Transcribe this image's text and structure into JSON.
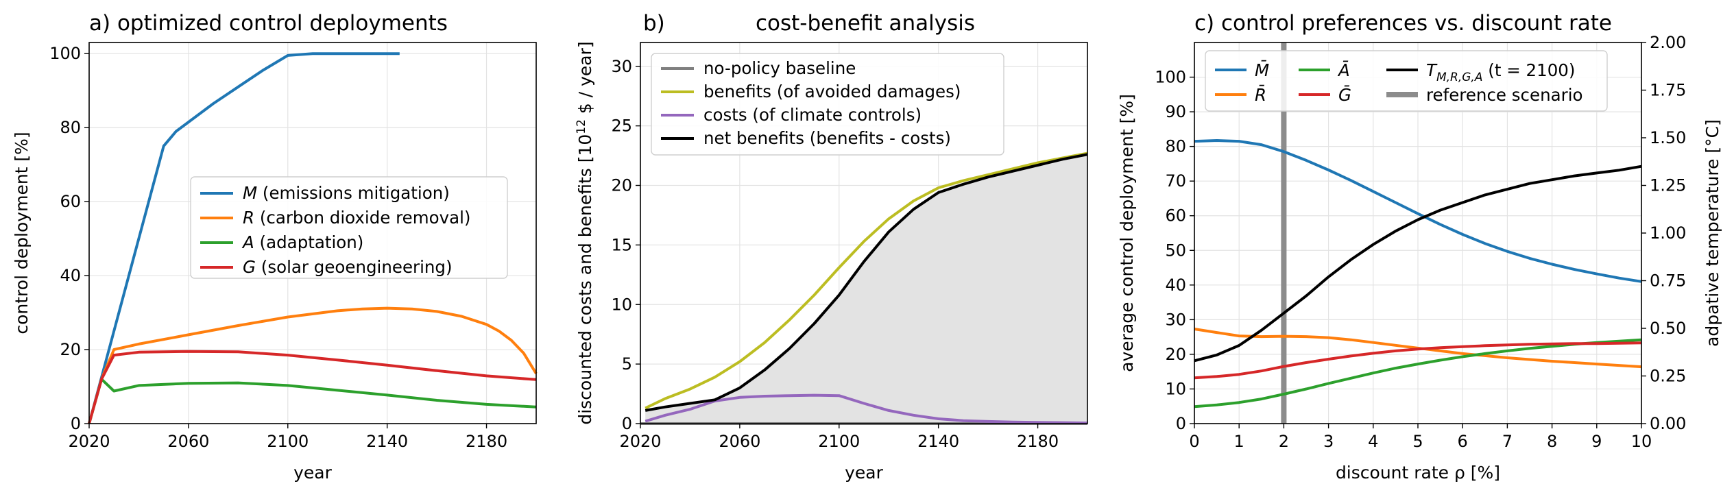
{
  "chart_data": [
    {
      "type": "line",
      "title": "a)   optimized control deployments",
      "xlabel": "year",
      "ylabel": "control deployment [%]",
      "xlim": [
        2020,
        2200
      ],
      "ylim": [
        0,
        103
      ],
      "xticks": [
        2020,
        2060,
        2100,
        2140,
        2180
      ],
      "yticks": [
        0,
        20,
        40,
        60,
        80,
        100
      ],
      "grid": true,
      "legend_position": "center-right",
      "series": [
        {
          "name": "M (emissions mitigation)",
          "italic": "M",
          "rest": " (emissions mitigation)",
          "color": "#1f77b4",
          "x": [
            2020,
            2030,
            2040,
            2050,
            2055,
            2060,
            2070,
            2080,
            2090,
            2100,
            2110,
            2120,
            2130,
            2140,
            2145
          ],
          "y": [
            0,
            25,
            50,
            75,
            79,
            81.5,
            86.5,
            91,
            95.5,
            99.5,
            100,
            100,
            100,
            100,
            100
          ]
        },
        {
          "name": "R (carbon dioxide removal)",
          "italic": "R",
          "rest": " (carbon dioxide removal)",
          "color": "#ff7f0e",
          "x": [
            2020,
            2025,
            2030,
            2040,
            2060,
            2080,
            2100,
            2120,
            2130,
            2140,
            2150,
            2160,
            2170,
            2180,
            2185,
            2190,
            2195,
            2200
          ],
          "y": [
            0,
            12,
            20,
            21.5,
            24,
            26.5,
            28.8,
            30.5,
            31,
            31.2,
            31,
            30.3,
            29,
            26.8,
            25,
            22.5,
            19,
            13.5
          ]
        },
        {
          "name": "A (adaptation)",
          "italic": "A",
          "rest": " (adaptation)",
          "color": "#2ca02c",
          "x": [
            2020,
            2025,
            2030,
            2040,
            2060,
            2080,
            2100,
            2120,
            2140,
            2160,
            2180,
            2200
          ],
          "y": [
            0,
            12,
            8.8,
            10.3,
            10.9,
            11,
            10.3,
            9,
            7.7,
            6.3,
            5.2,
            4.5
          ]
        },
        {
          "name": "G (solar geoengineering)",
          "italic": "G",
          "rest": " (solar geoengineering)",
          "color": "#d62728",
          "x": [
            2020,
            2025,
            2030,
            2040,
            2060,
            2080,
            2100,
            2120,
            2140,
            2160,
            2180,
            2200
          ],
          "y": [
            0,
            12,
            18.5,
            19.3,
            19.5,
            19.4,
            18.5,
            17.2,
            15.8,
            14.3,
            12.9,
            11.9
          ]
        }
      ]
    },
    {
      "type": "line",
      "title_prefix": "b)",
      "title": "cost-benefit analysis",
      "xlabel": "year",
      "ylabel": "discounted costs and benefits [10",
      "ylabel_sup": "12",
      "ylabel_suffix": " $ / year]",
      "xlim": [
        2020,
        2200
      ],
      "ylim": [
        0,
        32
      ],
      "xticks": [
        2020,
        2060,
        2100,
        2140,
        2180
      ],
      "yticks": [
        0,
        5,
        10,
        15,
        20,
        25,
        30
      ],
      "grid": true,
      "legend_position": "top-left",
      "fill_under": "net benefits (benefits - costs)",
      "series": [
        {
          "name": "no-policy baseline",
          "color": "#7f7f7f",
          "x": [
            2020,
            2200
          ],
          "y": [
            0,
            0
          ]
        },
        {
          "name": "benefits (of avoided damages)",
          "color": "#bcbd22",
          "x": [
            2022,
            2030,
            2040,
            2050,
            2060,
            2070,
            2080,
            2090,
            2100,
            2110,
            2120,
            2130,
            2140,
            2150,
            2160,
            2170,
            2180,
            2190,
            2200
          ],
          "y": [
            1.3,
            2.1,
            2.9,
            3.9,
            5.2,
            6.8,
            8.7,
            10.8,
            13.1,
            15.3,
            17.2,
            18.7,
            19.8,
            20.4,
            20.9,
            21.4,
            21.9,
            22.3,
            22.7
          ]
        },
        {
          "name": "costs (of climate controls)",
          "color": "#9467bd",
          "x": [
            2022,
            2030,
            2040,
            2050,
            2060,
            2070,
            2080,
            2090,
            2100,
            2110,
            2120,
            2130,
            2140,
            2150,
            2160,
            2170,
            2180,
            2190,
            2200
          ],
          "y": [
            0.2,
            0.7,
            1.2,
            1.9,
            2.2,
            2.3,
            2.35,
            2.38,
            2.35,
            1.7,
            1.1,
            0.7,
            0.4,
            0.25,
            0.18,
            0.13,
            0.1,
            0.08,
            0.05
          ]
        },
        {
          "name": "net benefits (benefits - costs)",
          "color": "#000000",
          "x": [
            2022,
            2030,
            2040,
            2050,
            2060,
            2070,
            2080,
            2090,
            2100,
            2110,
            2120,
            2130,
            2140,
            2150,
            2160,
            2170,
            2180,
            2190,
            2200
          ],
          "y": [
            1.1,
            1.4,
            1.7,
            2.0,
            3.0,
            4.5,
            6.3,
            8.4,
            10.8,
            13.6,
            16.1,
            18.0,
            19.4,
            20.1,
            20.7,
            21.2,
            21.7,
            22.2,
            22.6
          ]
        }
      ]
    },
    {
      "type": "line",
      "title": "c) control preferences vs. discount rate",
      "xlabel": "discount rate ρ [%]",
      "ylabel": "average control deployment [%]",
      "ylabel_right": "adpative temperature [°C]",
      "xlim": [
        0,
        10
      ],
      "ylim": [
        0,
        110
      ],
      "ylim_right": [
        0,
        2.0
      ],
      "xticks": [
        0,
        1,
        2,
        3,
        4,
        5,
        6,
        7,
        8,
        9,
        10
      ],
      "yticks": [
        0,
        10,
        20,
        30,
        40,
        50,
        60,
        70,
        80,
        90,
        100
      ],
      "yticks_right": [
        "0.00",
        "0.25",
        "0.50",
        "0.75",
        "1.00",
        "1.25",
        "1.50",
        "1.75",
        "2.00"
      ],
      "grid": true,
      "legend_position": "top",
      "reference_x": 2,
      "series": [
        {
          "name": "M̄",
          "color": "#1f77b4",
          "axis": "left",
          "x": [
            0,
            0.5,
            1,
            1.5,
            2,
            2.5,
            3,
            3.5,
            4,
            4.5,
            5,
            5.5,
            6,
            6.5,
            7,
            7.5,
            8,
            8.5,
            9,
            9.5,
            10
          ],
          "y": [
            81.5,
            81.7,
            81.5,
            80.5,
            78.5,
            76,
            73.2,
            70.2,
            67,
            63.8,
            60.6,
            57.5,
            54.6,
            52,
            49.7,
            47.7,
            46,
            44.5,
            43.2,
            42,
            41
          ]
        },
        {
          "name": "R̄",
          "color": "#ff7f0e",
          "axis": "left",
          "x": [
            0,
            0.5,
            1,
            1.5,
            2,
            2.5,
            3,
            3.5,
            4,
            4.5,
            5,
            5.5,
            6,
            6.5,
            7,
            7.5,
            8,
            8.5,
            9,
            9.5,
            10
          ],
          "y": [
            27.3,
            26.3,
            25.3,
            25.1,
            25.2,
            25.1,
            24.8,
            24.2,
            23.4,
            22.6,
            21.8,
            21,
            20.2,
            19.6,
            19,
            18.5,
            18,
            17.6,
            17.2,
            16.8,
            16.4
          ]
        },
        {
          "name": "Ā",
          "color": "#2ca02c",
          "axis": "left",
          "x": [
            0,
            0.5,
            1,
            1.5,
            2,
            2.5,
            3,
            3.5,
            4,
            4.5,
            5,
            5.5,
            6,
            6.5,
            7,
            7.5,
            8,
            8.5,
            9,
            9.5,
            10
          ],
          "y": [
            4.9,
            5.4,
            6.1,
            7.1,
            8.5,
            10,
            11.6,
            13.1,
            14.6,
            16,
            17.2,
            18.3,
            19.3,
            20.2,
            21,
            21.7,
            22.3,
            22.9,
            23.4,
            23.8,
            24.2
          ]
        },
        {
          "name": "Ḡ",
          "color": "#d62728",
          "axis": "left",
          "x": [
            0,
            0.5,
            1,
            1.5,
            2,
            2.5,
            3,
            3.5,
            4,
            4.5,
            5,
            5.5,
            6,
            6.5,
            7,
            7.5,
            8,
            8.5,
            9,
            9.5,
            10
          ],
          "y": [
            13.2,
            13.6,
            14.2,
            15.2,
            16.5,
            17.6,
            18.6,
            19.5,
            20.3,
            21,
            21.5,
            21.9,
            22.2,
            22.5,
            22.7,
            22.9,
            23,
            23.1,
            23.1,
            23.2,
            23.3
          ]
        },
        {
          "name": "T_{M,R,G,A}(t = 2100)",
          "color": "#000000",
          "axis": "right",
          "x": [
            0,
            0.5,
            1,
            1.5,
            2,
            2.5,
            3,
            3.5,
            4,
            4.5,
            5,
            5.5,
            6,
            6.5,
            7,
            7.5,
            8,
            8.5,
            9,
            9.5,
            10
          ],
          "y": [
            0.33,
            0.36,
            0.41,
            0.49,
            0.58,
            0.67,
            0.77,
            0.86,
            0.94,
            1.01,
            1.07,
            1.12,
            1.16,
            1.2,
            1.23,
            1.26,
            1.28,
            1.3,
            1.315,
            1.33,
            1.35
          ]
        }
      ],
      "legend_entries": [
        {
          "key": "M̄",
          "color": "#1f77b4",
          "col": 0,
          "row": 0
        },
        {
          "key": "R̄",
          "color": "#ff7f0e",
          "col": 0,
          "row": 1
        },
        {
          "key": "Ā",
          "color": "#2ca02c",
          "col": 1,
          "row": 0
        },
        {
          "key": "Ḡ",
          "color": "#d62728",
          "col": 1,
          "row": 1
        },
        {
          "key": "T_{M,R,G,A}(t = 2100)",
          "main": "T",
          "sub": "M,R,G,A",
          "rest": " (t = 2100)",
          "color": "#000000",
          "col": 2,
          "row": 0
        },
        {
          "key": "reference scenario",
          "color": "#8c8c8c",
          "col": 2,
          "row": 1,
          "thick": true
        }
      ]
    }
  ]
}
